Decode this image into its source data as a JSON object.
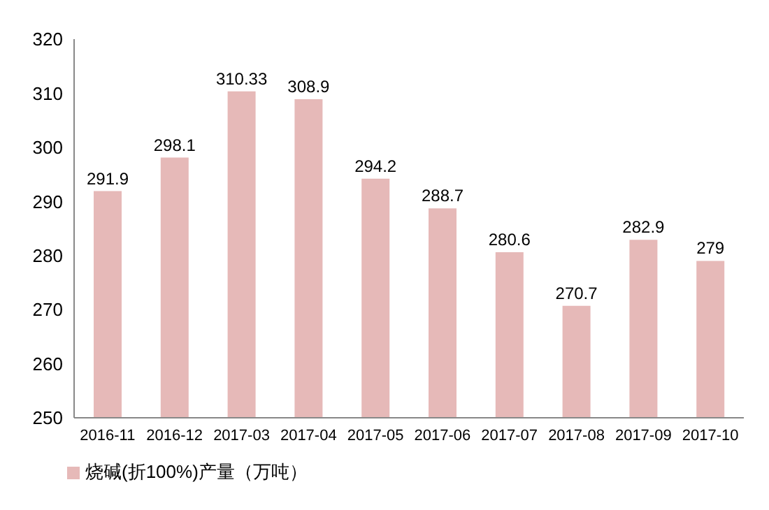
{
  "chart_data": {
    "type": "bar",
    "categories": [
      "2016-11",
      "2016-12",
      "2017-03",
      "2017-04",
      "2017-05",
      "2017-06",
      "2017-07",
      "2017-08",
      "2017-09",
      "2017-10"
    ],
    "series": [
      {
        "name": "烧碱(折100%)产量（万吨）",
        "color": "#e6b9b8",
        "values": [
          291.9,
          298.1,
          310.33,
          308.9,
          294.2,
          288.7,
          280.6,
          270.7,
          282.9,
          279
        ]
      }
    ],
    "ylim": [
      250,
      320
    ],
    "yticks": [
      250,
      260,
      270,
      280,
      290,
      300,
      310,
      320
    ],
    "data_labels": true,
    "grid": false,
    "legend": "bottom left"
  }
}
